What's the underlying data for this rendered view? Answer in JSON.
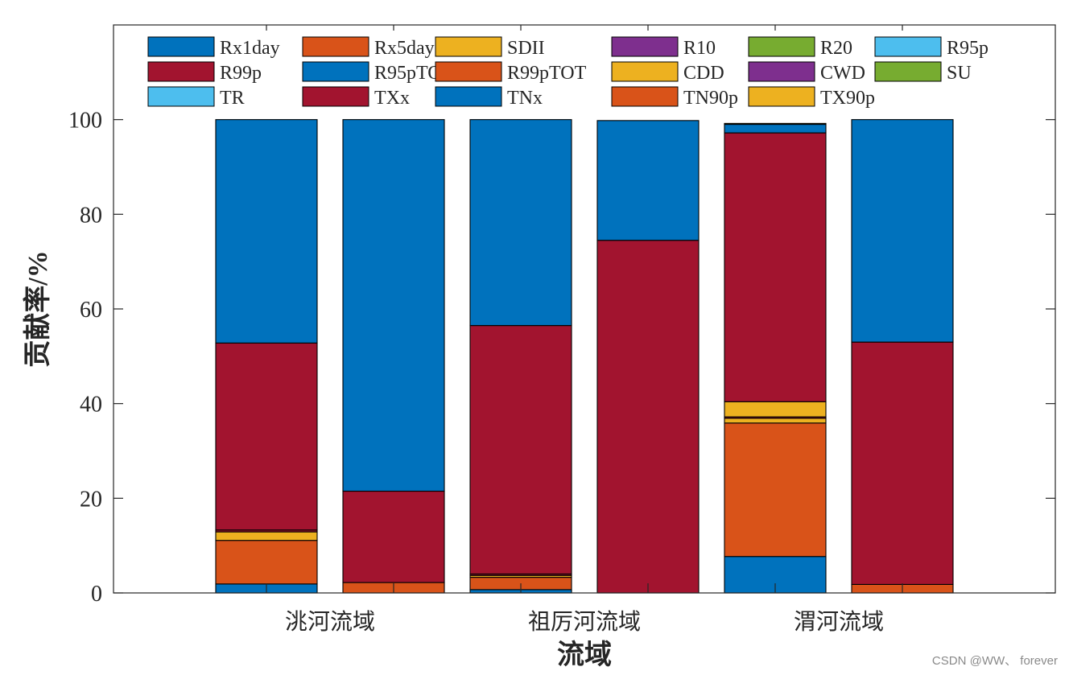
{
  "chart_data": {
    "type": "bar",
    "stacked": true,
    "categories": [
      "洮河流域",
      "",
      "祖厉河流域",
      "",
      "渭河流域",
      ""
    ],
    "xlabel": "流域",
    "ylabel": "贡献率/%",
    "ylim": [
      0,
      120
    ],
    "yticks": [
      0,
      20,
      40,
      60,
      80,
      100
    ],
    "grid": false,
    "legend": {
      "position": "top",
      "columns": 6
    },
    "series": [
      {
        "name": "Rx1day",
        "color": "#0072BD",
        "values": [
          1.9,
          0,
          0.7,
          0,
          7.7,
          0
        ]
      },
      {
        "name": "Rx5day",
        "color": "#D95319",
        "values": [
          9.2,
          2.2,
          2.6,
          0,
          28.2,
          1.8
        ]
      },
      {
        "name": "SDII",
        "color": "#EDB120",
        "values": [
          1.8,
          0,
          0.4,
          0,
          1.0,
          0
        ]
      },
      {
        "name": "R10",
        "color": "#7E2F8E",
        "values": [
          0,
          0,
          0,
          0,
          0,
          0
        ]
      },
      {
        "name": "R20",
        "color": "#77AC30",
        "values": [
          0,
          0,
          0,
          0,
          0,
          0
        ]
      },
      {
        "name": "R95p",
        "color": "#4DBEEE",
        "values": [
          0,
          0,
          0,
          0,
          0,
          0
        ]
      },
      {
        "name": "R99p",
        "color": "#A2142F",
        "values": [
          0.4,
          0,
          0.3,
          0,
          0.3,
          0
        ]
      },
      {
        "name": "R95pTOT",
        "color": "#0072BD",
        "values": [
          0,
          0,
          0,
          0,
          0,
          0
        ]
      },
      {
        "name": "R99pTOT",
        "color": "#D95319",
        "values": [
          0,
          0,
          0,
          0,
          0,
          0
        ]
      },
      {
        "name": "CDD",
        "color": "#EDB120",
        "values": [
          0,
          0,
          0,
          0,
          3.2,
          0
        ]
      },
      {
        "name": "CWD",
        "color": "#7E2F8E",
        "values": [
          0,
          0,
          0,
          0,
          0,
          0
        ]
      },
      {
        "name": "SU",
        "color": "#77AC30",
        "values": [
          0,
          0,
          0,
          0,
          0,
          0
        ]
      },
      {
        "name": "TR",
        "color": "#4DBEEE",
        "values": [
          0,
          0,
          0,
          0,
          0,
          0
        ]
      },
      {
        "name": "TXx",
        "color": "#A2142F",
        "values": [
          39.5,
          19.3,
          52.5,
          74.5,
          56.8,
          51.2
        ]
      },
      {
        "name": "TNx",
        "color": "#0072BD",
        "values": [
          47.2,
          78.5,
          43.5,
          25.3,
          1.8,
          47.0
        ]
      },
      {
        "name": "TN90p",
        "color": "#D95319",
        "values": [
          0,
          0,
          0,
          0,
          0,
          0
        ]
      },
      {
        "name": "TX90p",
        "color": "#EDB120",
        "values": [
          0,
          0,
          0,
          0,
          0.2,
          0
        ]
      }
    ]
  },
  "watermark": "CSDN @WW、 forever"
}
